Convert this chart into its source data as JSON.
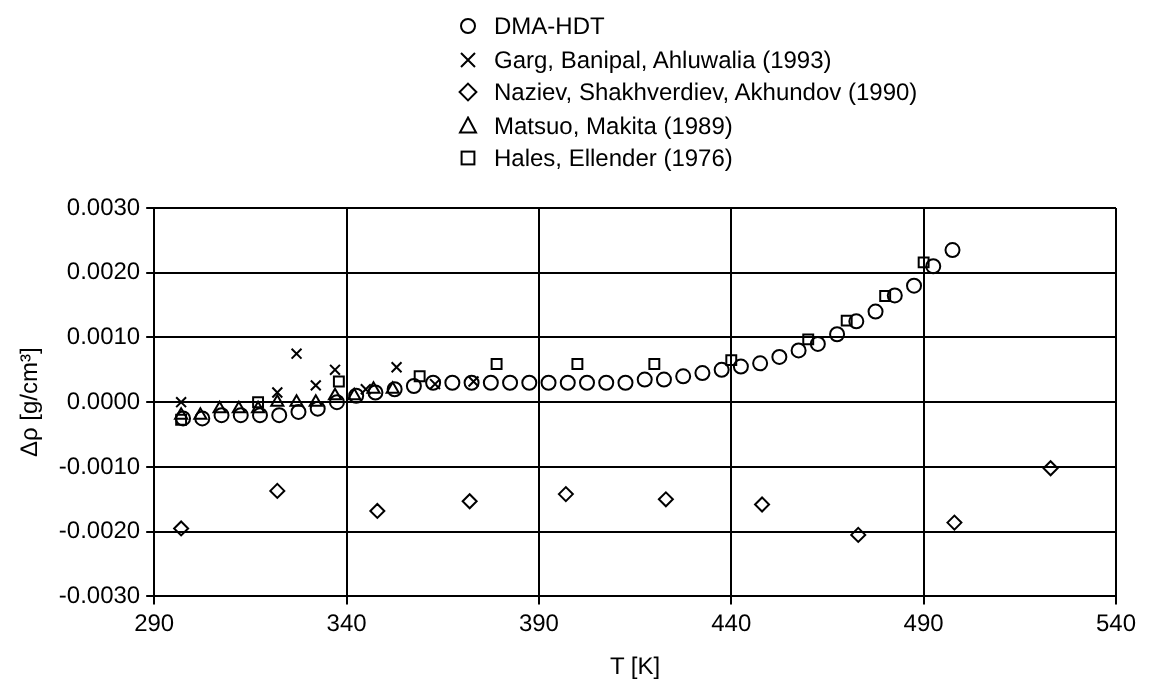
{
  "chart_data": {
    "type": "scatter",
    "xlabel": "T [K]",
    "ylabel": "Δρ [g/cm³]",
    "xlim": [
      290,
      540
    ],
    "xticks": [
      290,
      340,
      390,
      440,
      490,
      540
    ],
    "ylim": [
      -0.003,
      0.003
    ],
    "yticks": [
      {
        "value": -0.003,
        "label": "-0.0030"
      },
      {
        "value": -0.002,
        "label": "-0.0020"
      },
      {
        "value": -0.001,
        "label": "-0.0010"
      },
      {
        "value": 0,
        "label": "0.0000"
      },
      {
        "value": 0.001,
        "label": "0.0010"
      },
      {
        "value": 0.002,
        "label": "0.0020"
      },
      {
        "value": 0.003,
        "label": "0.0030"
      }
    ],
    "grid": true,
    "legend": "top",
    "series": [
      {
        "name": "DMA-HDT",
        "color": "#000000",
        "marker": "circle",
        "x": [
          297.5,
          302.5,
          307.5,
          312.5,
          317.5,
          322.5,
          327.5,
          332.5,
          337.5,
          342.5,
          347.5,
          352.5,
          357.5,
          362.5,
          367.5,
          372.5,
          377.5,
          382.5,
          387.5,
          392.5,
          397.5,
          402.5,
          407.5,
          412.5,
          417.5,
          422.5,
          427.5,
          432.5,
          437.5,
          442.5,
          447.5,
          452.5,
          457.5,
          462.5,
          467.5,
          472.5,
          477.5,
          482.5,
          487.5,
          492.5,
          497.5
        ],
        "values": [
          -0.00025,
          -0.00025,
          -0.0002,
          -0.0002,
          -0.0002,
          -0.0002,
          -0.00015,
          -0.0001,
          0,
          0.0001,
          0.00015,
          0.0002,
          0.00025,
          0.0003,
          0.0003,
          0.0003,
          0.0003,
          0.0003,
          0.0003,
          0.0003,
          0.0003,
          0.0003,
          0.0003,
          0.0003,
          0.00035,
          0.00035,
          0.0004,
          0.00045,
          0.0005,
          0.00055,
          0.0006,
          0.0007,
          0.0008,
          0.0009,
          0.00105,
          0.00125,
          0.0014,
          0.00165,
          0.0018,
          0.0021,
          0.00235
        ]
      },
      {
        "name": "Garg, Banipal, Ahluwalia (1993)",
        "color": "#000000",
        "marker": "cross",
        "x": [
          297,
          322,
          327,
          332,
          337,
          345,
          353,
          363,
          373
        ],
        "values": [
          0,
          0.00015,
          0.00075,
          0.00026,
          0.0005,
          0.0002,
          0.00054,
          0.00028,
          0.00032
        ]
      },
      {
        "name": "Naziev, Shakhverdiev, Akhundov (1990)",
        "color": "#000000",
        "marker": "diamond",
        "x": [
          297,
          322,
          348,
          372,
          397,
          423,
          448,
          473,
          498,
          523
        ],
        "values": [
          -0.00195,
          -0.00137,
          -0.00168,
          -0.00153,
          -0.00142,
          -0.0015,
          -0.00158,
          -0.00205,
          -0.00186,
          -0.00102
        ]
      },
      {
        "name": "Matsuo, Makita (1989)",
        "color": "#000000",
        "marker": "triangle",
        "x": [
          297,
          302,
          307,
          312,
          317,
          322,
          327,
          332,
          337,
          342,
          347,
          352
        ],
        "values": [
          -0.0002,
          -0.0002,
          -0.0001,
          -0.0001,
          -0.0001,
          0,
          0,
          0,
          0.0001,
          0.0001,
          0.0002,
          0.0002
        ]
      },
      {
        "name": "Hales, Ellender (1976)",
        "color": "#000000",
        "marker": "square",
        "x": [
          297,
          317,
          338,
          359,
          379,
          400,
          420,
          440,
          460,
          470,
          480,
          490
        ],
        "values": [
          -0.00027,
          0,
          0.00032,
          0.0004,
          0.00059,
          0.00059,
          0.00059,
          0.00065,
          0.00097,
          0.00126,
          0.00164,
          0.00216
        ]
      }
    ]
  }
}
